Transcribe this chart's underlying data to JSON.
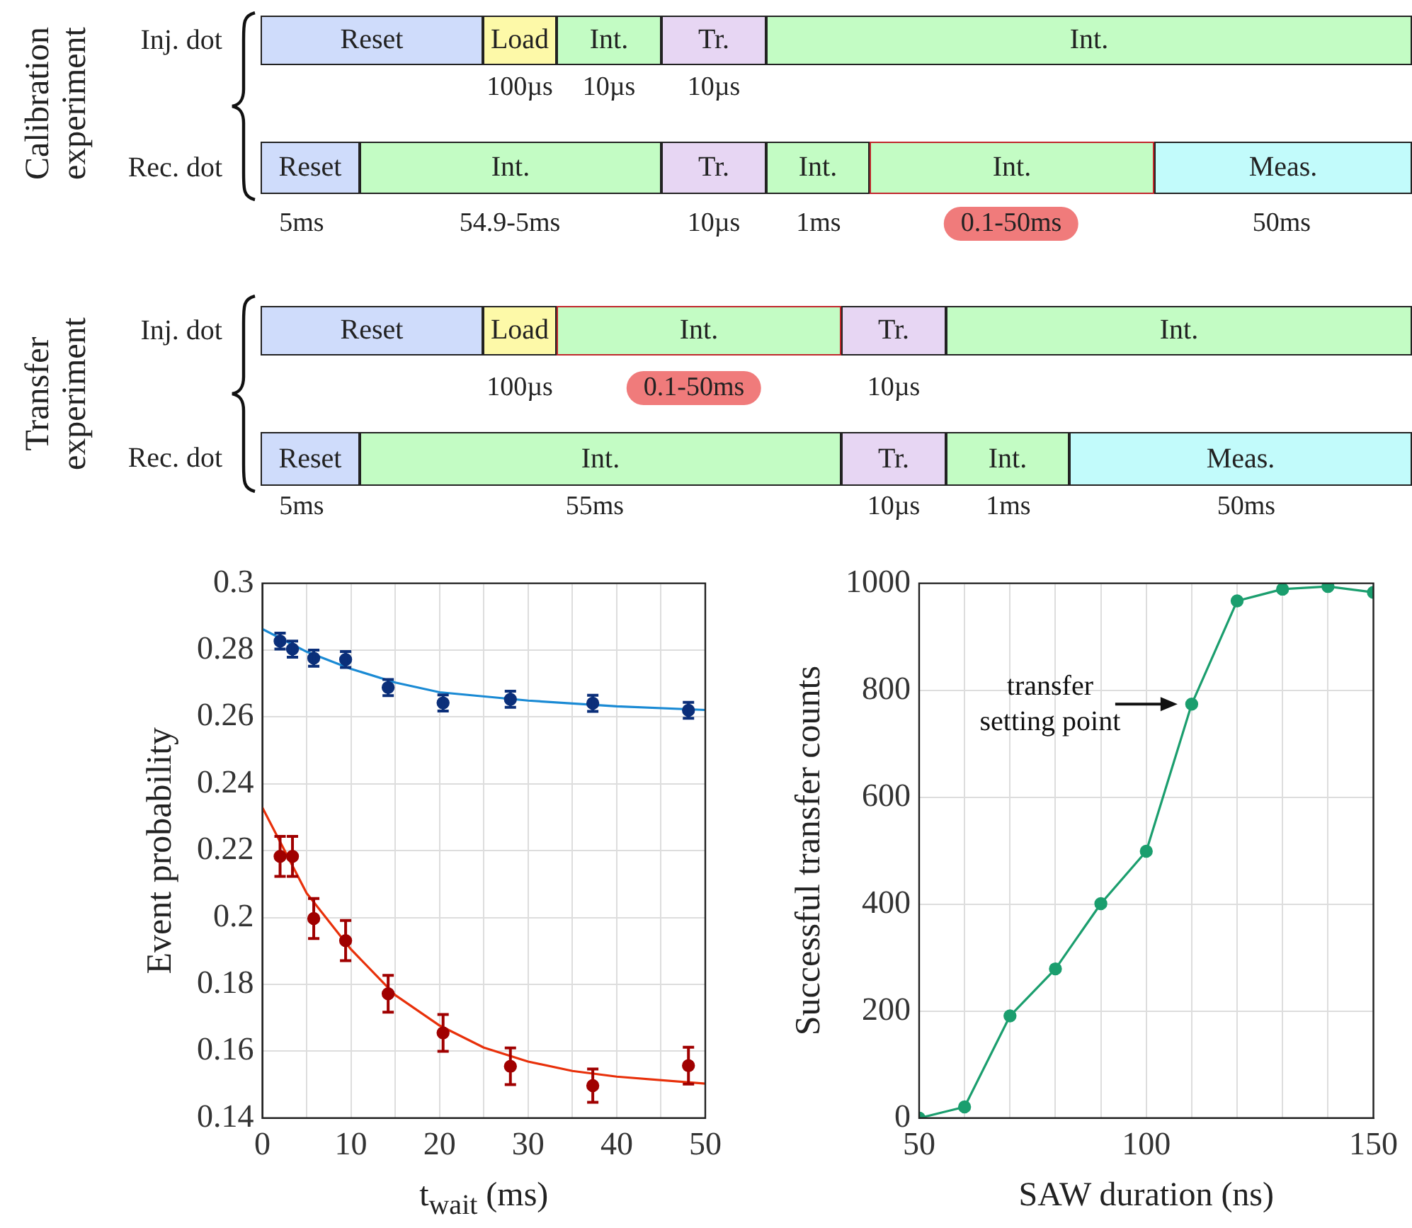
{
  "chart_data": [
    {
      "type": "other",
      "annotations": [
        "Calibration experiment",
        "Inj. dot",
        "Reset",
        "Load",
        "Int.",
        "Tr.",
        "Int.",
        "100µs",
        "10µs",
        "10µs",
        "Rec. dot",
        "Reset",
        "Int.",
        "Tr.",
        "Int.",
        "Int.",
        "Meas.",
        "5ms",
        "54.9-5ms",
        "10µs",
        "1ms",
        "0.1-50ms",
        "50ms",
        "Transfer experiment",
        "Inj. dot",
        "Reset",
        "Load",
        "Int.",
        "Tr.",
        "Int.",
        "100µs",
        "0.1-50ms",
        "10µs",
        "Rec. dot",
        "Reset",
        "Int.",
        "Tr.",
        "Int.",
        "Meas.",
        "5ms",
        "55ms",
        "10µs",
        "1ms",
        "50ms"
      ]
    },
    {
      "type": "scatter",
      "xlabel": "t$_{wait}$ (ms)",
      "ylabel": "Event probability",
      "x": [
        2,
        3.4,
        5.8,
        9.4,
        14.2,
        20.4,
        28,
        37.3,
        48.1
      ],
      "marker": "circle",
      "grid": true,
      "xlim": [
        0,
        50
      ],
      "xticks": [
        0,
        {
          "value": 5,
          "label": null
        },
        10,
        {
          "value": 15,
          "label": null
        },
        20,
        {
          "value": 25,
          "label": null
        },
        30,
        {
          "value": 35,
          "label": null
        },
        40,
        {
          "value": 45,
          "label": null
        },
        50
      ],
      "ylim": [
        0.14,
        0.3
      ],
      "yticks": [
        0.14,
        0.16,
        0.18,
        0.2,
        0.22,
        0.24,
        0.26,
        0.28,
        0.3
      ],
      "series": [
        {
          "color": "#0b2f7a",
          "values": [
            0.2827,
            0.2803,
            0.2776,
            0.2772,
            0.2688,
            0.2642,
            0.2653,
            0.2641,
            0.262
          ],
          "errors": [
            0.0024,
            0.0024,
            0.0024,
            0.0024,
            0.0024,
            0.0024,
            0.0024,
            0.0024,
            0.0024
          ]
        },
        {
          "color": "#a00000",
          "values": [
            0.2183,
            0.2183,
            0.1997,
            0.1931,
            0.1772,
            0.1655,
            0.1555,
            0.1497,
            0.1557
          ],
          "errors": [
            0.006,
            0.006,
            0.006,
            0.006,
            0.0055,
            0.0055,
            0.0055,
            0.005,
            0.0055
          ]
        },
        {
          "type": "line",
          "marker": "none",
          "color": "#1a8ad4",
          "x": [
            0,
            5,
            10,
            15,
            20,
            30,
            40,
            50
          ],
          "values": [
            0.2863,
            0.2795,
            0.2744,
            0.2703,
            0.2674,
            0.2649,
            0.2632,
            0.2621
          ]
        },
        {
          "type": "line",
          "marker": "none",
          "color": "#e8300a",
          "x": [
            0,
            5,
            10,
            15,
            20,
            25,
            30,
            35,
            40,
            50
          ],
          "values": [
            0.2329,
            0.2073,
            0.1905,
            0.1768,
            0.1677,
            0.1611,
            0.1569,
            0.1541,
            0.1524,
            0.1503
          ]
        }
      ]
    },
    {
      "type": "line",
      "xlabel": "SAW duration (ns)",
      "ylabel": "Successful transfer counts",
      "x": [
        50,
        60,
        70,
        80,
        90,
        100,
        110,
        120,
        130,
        140,
        150
      ],
      "marker": "circle",
      "grid": true,
      "xlim": [
        50,
        150
      ],
      "xticks": [
        50,
        {
          "value": 60,
          "label": null
        },
        {
          "value": 70,
          "label": null
        },
        {
          "value": 80,
          "label": null
        },
        {
          "value": 90,
          "label": null
        },
        100,
        {
          "value": 110,
          "label": null
        },
        {
          "value": 120,
          "label": null
        },
        {
          "value": 130,
          "label": null
        },
        {
          "value": 140,
          "label": null
        },
        150
      ],
      "ylim": [
        0,
        1000
      ],
      "yticks": [
        0,
        200,
        400,
        600,
        800,
        1000
      ],
      "series": [
        {
          "color": "#1b9e6e",
          "values": [
            0,
            21,
            191,
            279,
            401,
            499,
            774,
            967,
            989,
            994,
            983
          ]
        }
      ],
      "annotations": [
        {
          "text": "transfer setting point",
          "x": 110,
          "y": 774
        }
      ]
    }
  ]
}
